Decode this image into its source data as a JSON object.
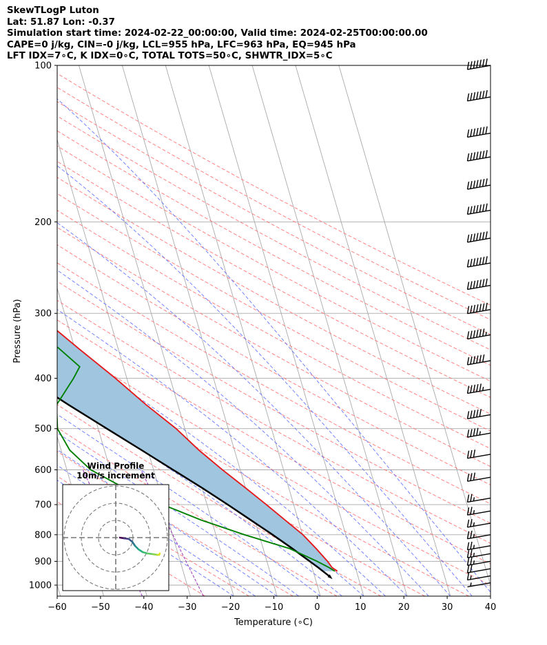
{
  "header": {
    "line1": "SkewTLogP Luton",
    "line2": "Lat: 51.87   Lon: -0.37",
    "line3": "Simulation start time: 2024-02-22_00:00:00, Valid time: 2024-02-25T00:00:00.00",
    "line4": "CAPE=0 j/kg, CIN=-0 j/kg, LCL=955 hPa, LFC=963 hPa, EQ=945 hPa",
    "line5": "LFT IDX=7∘C, K IDX=0∘C, TOTAL TOTS=50∘C, SHWTR_IDX=5∘C"
  },
  "hodograph": {
    "title_line1": "Wind Profile",
    "title_line2": "10m/s increment"
  },
  "colors": {
    "temperature": "#e41a1c",
    "dewpoint": "#008000",
    "parcel": "#000000",
    "shading": "#a0c6df",
    "dry_adiabat": "#ff6b6b",
    "moist_adiabat": "#5b6bff",
    "mixing_ratio": "#9b30c0",
    "isotherm": "#a9a9a9"
  },
  "chart_data": {
    "type": "line",
    "title": "SkewTLogP Luton",
    "xlabel": "Temperature (∘C)",
    "ylabel": "Pressure (hPa)",
    "xlim": [
      -60,
      40
    ],
    "ylim": [
      1050,
      100
    ],
    "x_ticks": [
      -60,
      -50,
      -40,
      -30,
      -20,
      -10,
      0,
      10,
      20,
      30,
      40
    ],
    "x_tick_labels": [
      "−60",
      "−50",
      "−40",
      "−30",
      "−20",
      "−10",
      "0",
      "10",
      "20",
      "30",
      "40"
    ],
    "y_ticks": [
      1000,
      900,
      800,
      700,
      600,
      500,
      400,
      300,
      200,
      100
    ],
    "y_tick_labels": [
      "1000",
      "900",
      "800",
      "700",
      "600",
      "500",
      "400",
      "300",
      "200",
      "100"
    ],
    "series": [
      {
        "name": "Temperature",
        "pressure": [
          940,
          925,
          900,
          850,
          800,
          750,
          700,
          650,
          600,
          550,
          500,
          450,
          400,
          350,
          300,
          270,
          250,
          230,
          200,
          180,
          160,
          150,
          130,
          115,
          100
        ],
        "values": [
          5.6,
          4.6,
          4.0,
          2.2,
          0.1,
          -3.0,
          -6.3,
          -10.0,
          -14.1,
          -18.2,
          -22.0,
          -27.3,
          -32.6,
          -39.2,
          -46.5,
          -51.0,
          -51.2,
          -51.0,
          -48.5,
          -48.0,
          -48.5,
          -50.0,
          -50.5,
          -52.0,
          -52.5
        ]
      },
      {
        "name": "Dewpoint",
        "pressure": [
          940,
          925,
          900,
          850,
          800,
          750,
          700,
          650,
          600,
          550,
          500,
          450,
          400,
          380,
          350,
          320,
          300,
          280,
          260,
          240,
          220,
          200,
          190,
          180,
          165,
          150,
          130,
          115,
          100
        ],
        "values": [
          5.0,
          3.9,
          1.6,
          -4.0,
          -13.4,
          -22.3,
          -30.2,
          -38.0,
          -44.5,
          -48.0,
          -49.4,
          -48.0,
          -42.3,
          -40.1,
          -43.7,
          -48.5,
          -52.0,
          -56.3,
          -59.0,
          -61.0,
          -61.0,
          -61.0,
          -62.5,
          -66.0,
          -69.4,
          -65.0,
          -59.0,
          -54.0,
          -50.0
        ]
      },
      {
        "name": "Parcel",
        "pressure": [
          965,
          925,
          900,
          850,
          800,
          750,
          700,
          650,
          600,
          550,
          500,
          450,
          400,
          350,
          300,
          250,
          200,
          150,
          100
        ],
        "values": [
          3.6,
          1.4,
          -0.1,
          -3.3,
          -6.9,
          -10.9,
          -15.2,
          -20.0,
          -25.5,
          -31.4,
          -38.0,
          -45.2,
          -52.9,
          -61.5,
          -71.1,
          -82.0,
          -94.5,
          -109.0,
          -127.0
        ]
      }
    ],
    "wind_barbs": {
      "pressure": [
        990,
        960,
        930,
        900,
        870,
        840,
        800,
        760,
        720,
        680,
        620,
        560,
        510,
        470,
        420,
        370,
        330,
        295,
        265,
        240,
        215,
        190,
        170,
        150,
        135,
        115,
        100
      ],
      "speed_kt": [
        5,
        15,
        20,
        25,
        25,
        25,
        25,
        25,
        25,
        25,
        30,
        30,
        45,
        50,
        55,
        60,
        65,
        70,
        70,
        70,
        70,
        70,
        70,
        70,
        70,
        70,
        70
      ]
    }
  }
}
